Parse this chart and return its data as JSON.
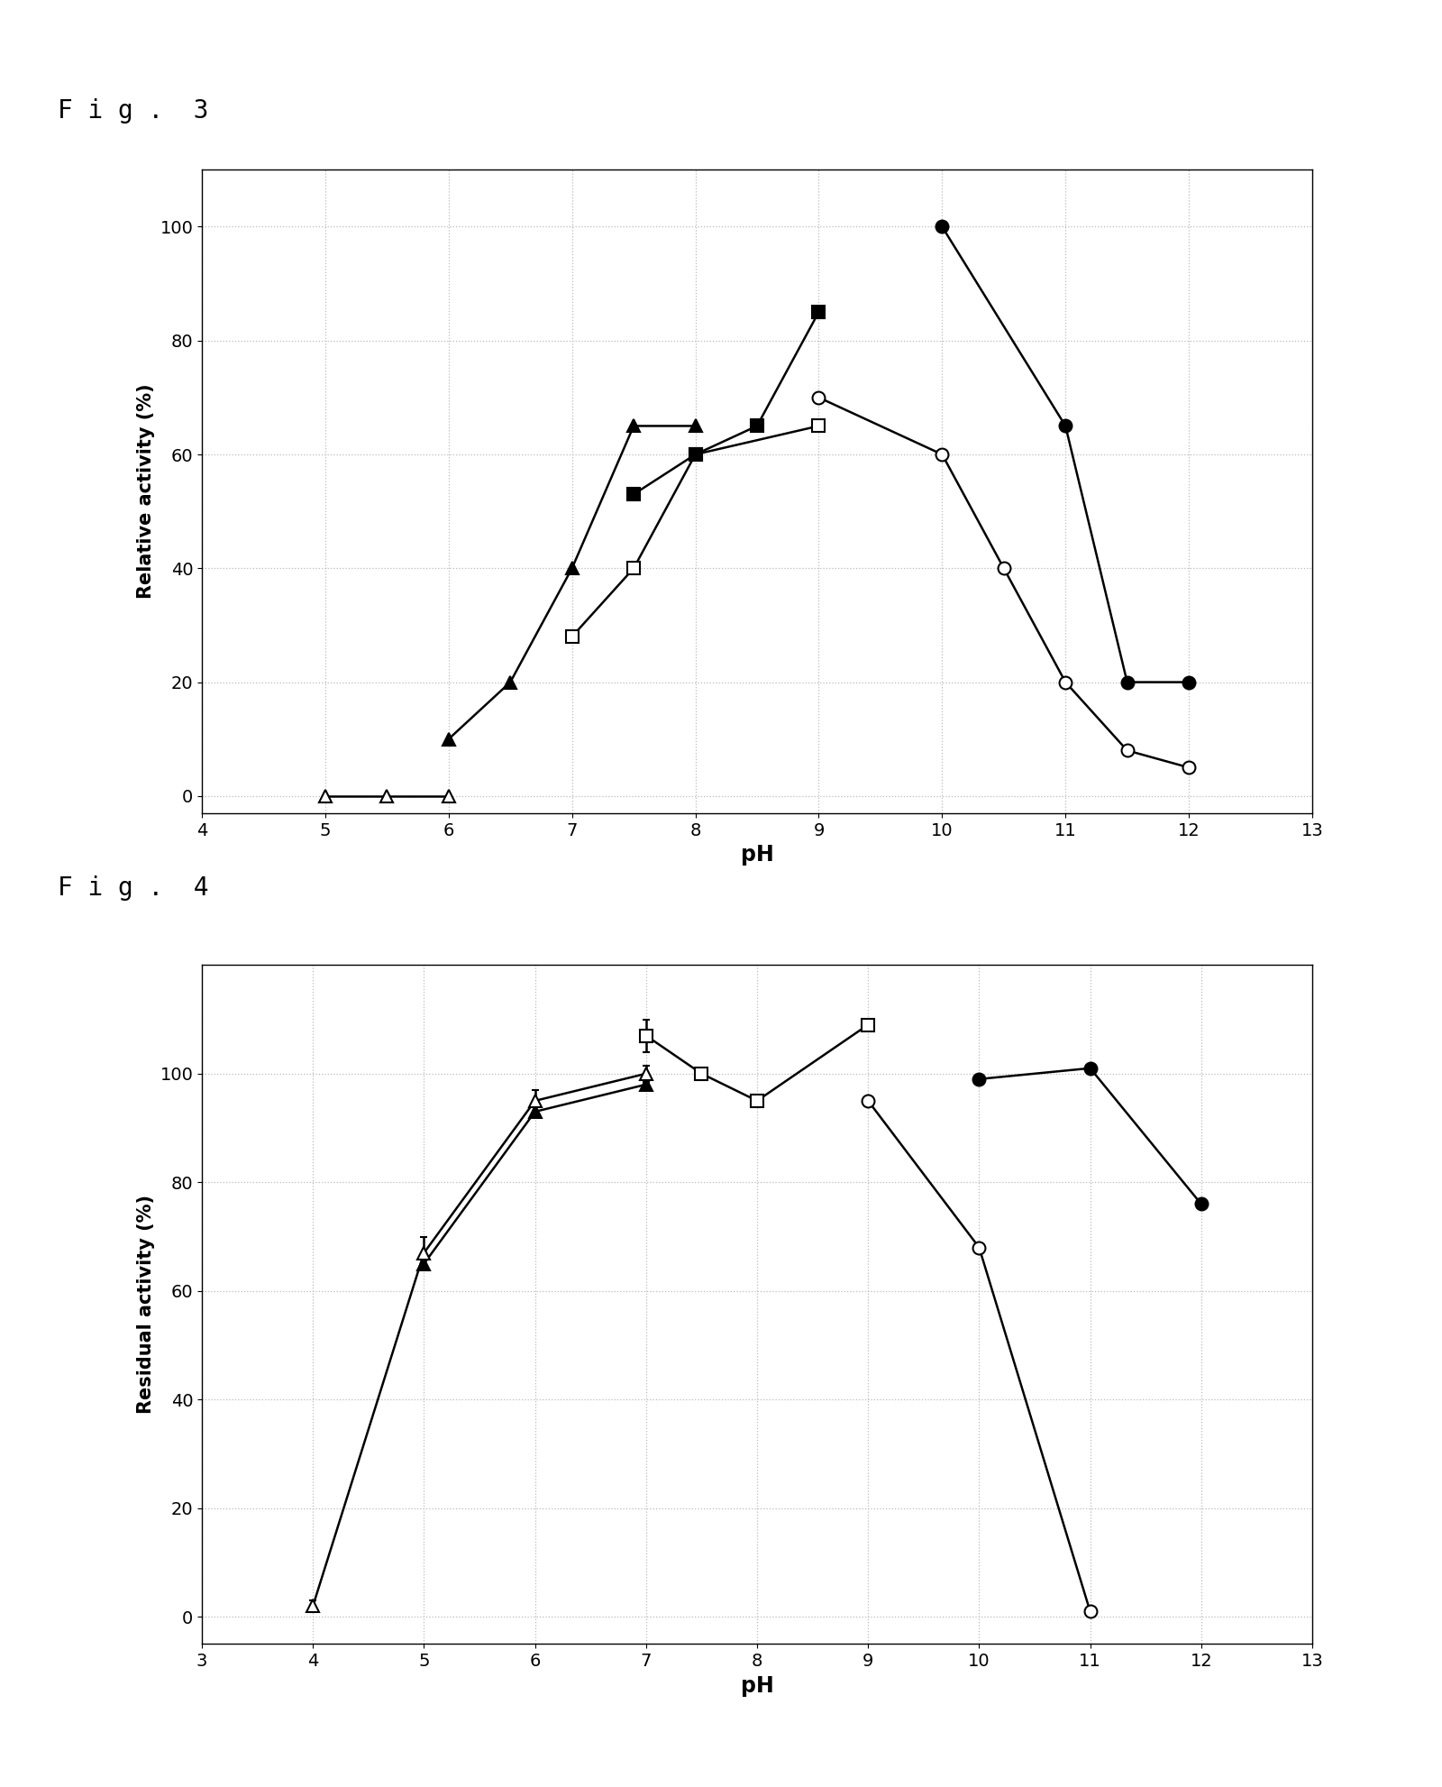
{
  "fig3": {
    "label": "F i g .  3",
    "ylabel": "Relative activity (%)",
    "xlabel": "pH",
    "xlim": [
      4,
      13
    ],
    "ylim": [
      -3,
      110
    ],
    "xticks": [
      4,
      5,
      6,
      7,
      8,
      9,
      10,
      11,
      12,
      13
    ],
    "yticks": [
      0,
      20,
      40,
      60,
      80,
      100
    ],
    "series": [
      {
        "name": "open_triangle",
        "x": [
          5,
          5.5,
          6
        ],
        "y": [
          0,
          0,
          0
        ],
        "yerr": null,
        "marker": "^",
        "filled": false
      },
      {
        "name": "filled_triangle",
        "x": [
          6,
          6.5,
          7,
          7.5,
          8
        ],
        "y": [
          10,
          20,
          40,
          65,
          65
        ],
        "yerr": null,
        "marker": "^",
        "filled": true
      },
      {
        "name": "open_square",
        "x": [
          7,
          7.5,
          8,
          9
        ],
        "y": [
          28,
          40,
          60,
          65
        ],
        "yerr": null,
        "marker": "s",
        "filled": false
      },
      {
        "name": "filled_square",
        "x": [
          7.5,
          8,
          8.5,
          9
        ],
        "y": [
          53,
          60,
          65,
          85
        ],
        "yerr": null,
        "marker": "s",
        "filled": true
      },
      {
        "name": "open_circle",
        "x": [
          9,
          10,
          10.5,
          11,
          11.5,
          12
        ],
        "y": [
          70,
          60,
          40,
          20,
          8,
          5
        ],
        "yerr": null,
        "marker": "o",
        "filled": false
      },
      {
        "name": "filled_circle",
        "x": [
          10,
          11,
          11.5,
          12
        ],
        "y": [
          100,
          65,
          20,
          20
        ],
        "yerr": null,
        "marker": "o",
        "filled": true
      }
    ]
  },
  "fig4": {
    "label": "F i g .  4",
    "ylabel": "Residual activity (%)",
    "xlabel": "pH",
    "xlim": [
      3,
      13
    ],
    "ylim": [
      -5,
      120
    ],
    "xticks": [
      3,
      4,
      5,
      6,
      7,
      8,
      9,
      10,
      11,
      12,
      13
    ],
    "yticks": [
      0,
      20,
      40,
      60,
      80,
      100
    ],
    "series": [
      {
        "name": "open_triangle",
        "x": [
          4,
          5,
          6,
          7
        ],
        "y": [
          2,
          67,
          95,
          100
        ],
        "yerr": [
          1,
          3,
          2,
          1.5
        ],
        "marker": "^",
        "filled": false
      },
      {
        "name": "filled_triangle",
        "x": [
          5,
          6,
          7
        ],
        "y": [
          65,
          93,
          98
        ],
        "yerr": null,
        "marker": "^",
        "filled": true
      },
      {
        "name": "open_square",
        "x": [
          7,
          7.5,
          8,
          9
        ],
        "y": [
          107,
          100,
          95,
          109
        ],
        "yerr": [
          3,
          1,
          1,
          0.5
        ],
        "marker": "s",
        "filled": false
      },
      {
        "name": "open_circle",
        "x": [
          9,
          10,
          11
        ],
        "y": [
          95,
          68,
          1
        ],
        "yerr": null,
        "marker": "o",
        "filled": false
      },
      {
        "name": "filled_circle",
        "x": [
          10,
          11,
          12
        ],
        "y": [
          99,
          101,
          76
        ],
        "yerr": null,
        "marker": "o",
        "filled": true
      }
    ]
  },
  "line_color": "#000000",
  "background_color": "#ffffff",
  "grid_color": "#bbbbbb",
  "marker_size": 10,
  "line_width": 1.8,
  "tick_fontsize": 14,
  "axis_label_fontsize": 15,
  "fig_label_fontsize": 20
}
